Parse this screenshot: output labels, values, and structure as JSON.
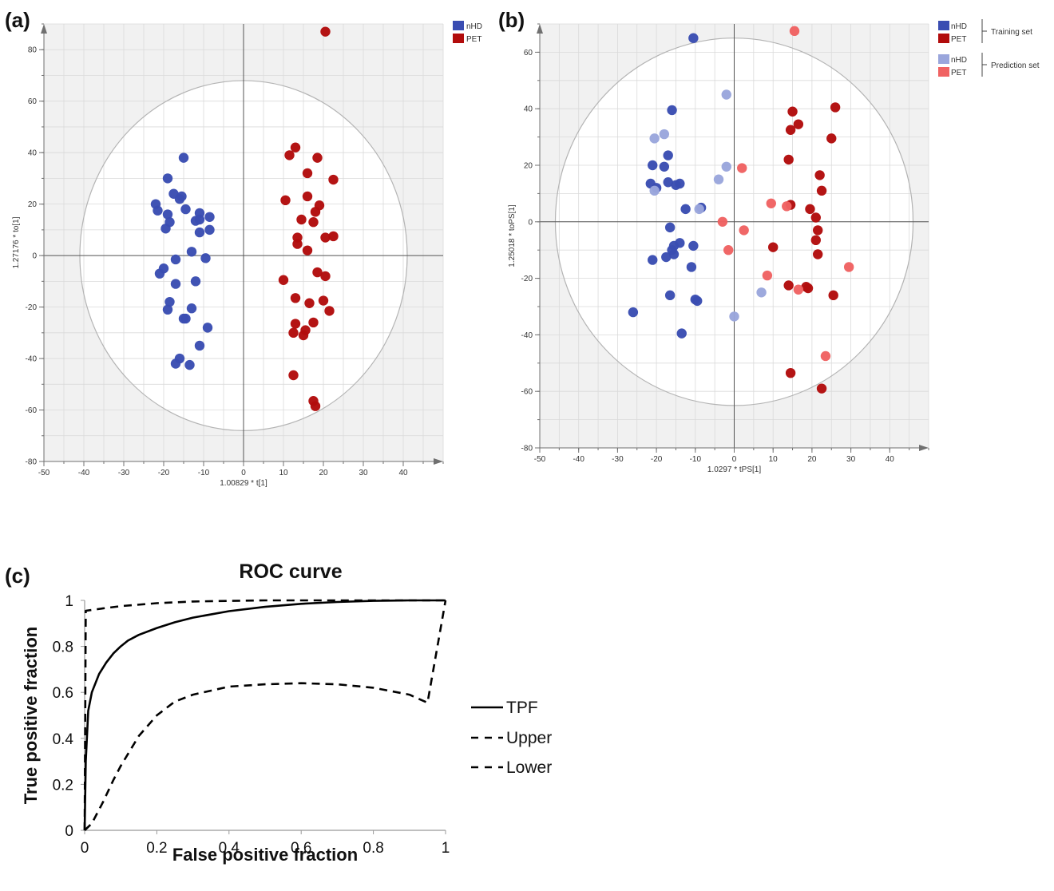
{
  "panel_labels": {
    "a": "(a)",
    "b": "(b)",
    "c": "(c)"
  },
  "colors": {
    "nHD_train": "#3a4db2",
    "PET_train": "#b20c0c",
    "nHD_pred": "#9aa6dc",
    "PET_pred": "#f06262",
    "plot_bg": "#f1f1f1",
    "grid": "#dadada",
    "axis": "#707070"
  },
  "chart_data": [
    {
      "id": "a",
      "type": "scatter",
      "title": "",
      "xlabel": "1.00829 * t[1]",
      "ylabel": "1.27176 * to[1]",
      "xlim": [
        -50,
        50
      ],
      "ylim": [
        -80,
        90
      ],
      "xticks": [
        -50,
        -40,
        -30,
        -20,
        -10,
        0,
        10,
        20,
        30,
        40
      ],
      "yticks": [
        -80,
        -60,
        -40,
        -20,
        0,
        20,
        40,
        60,
        80
      ],
      "ellipse": {
        "rx": 41,
        "ry": 68
      },
      "grid": true,
      "legend": [
        {
          "label": "nHD",
          "color": "#3a4db2"
        },
        {
          "label": "PET",
          "color": "#b20c0c"
        }
      ],
      "series": [
        {
          "name": "nHD",
          "color": "#3a4db2",
          "points": [
            [
              -15,
              38
            ],
            [
              -19,
              30
            ],
            [
              -22,
              20
            ],
            [
              -21.5,
              17.5
            ],
            [
              -17.5,
              24
            ],
            [
              -16,
              22
            ],
            [
              -15.5,
              23
            ],
            [
              -19,
              16
            ],
            [
              -18.5,
              13
            ],
            [
              -19.5,
              10.5
            ],
            [
              -14.5,
              18
            ],
            [
              -12,
              13.5
            ],
            [
              -11,
              16.5
            ],
            [
              -11,
              14
            ],
            [
              -8.5,
              15
            ],
            [
              -8.5,
              10
            ],
            [
              -11,
              9
            ],
            [
              -13,
              1.5
            ],
            [
              -9.5,
              -1
            ],
            [
              -17,
              -1.5
            ],
            [
              -20,
              -5
            ],
            [
              -21,
              -7
            ],
            [
              -17,
              -11
            ],
            [
              -12,
              -10
            ],
            [
              -18.5,
              -18
            ],
            [
              -19,
              -21
            ],
            [
              -13,
              -20.5
            ],
            [
              -15,
              -24.5
            ],
            [
              -14.5,
              -24.5
            ],
            [
              -9,
              -28
            ],
            [
              -11,
              -35
            ],
            [
              -16,
              -40
            ],
            [
              -17,
              -42
            ],
            [
              -13.5,
              -42.5
            ]
          ]
        },
        {
          "name": "PET",
          "color": "#b20c0c",
          "points": [
            [
              20.5,
              87
            ],
            [
              11.5,
              39
            ],
            [
              13,
              42
            ],
            [
              18.5,
              38
            ],
            [
              16,
              32
            ],
            [
              22.5,
              29.5
            ],
            [
              10.5,
              21.5
            ],
            [
              16,
              23
            ],
            [
              19,
              19.5
            ],
            [
              18,
              17
            ],
            [
              14.5,
              14
            ],
            [
              17.5,
              13
            ],
            [
              20.5,
              7
            ],
            [
              22.5,
              7.5
            ],
            [
              13.5,
              7
            ],
            [
              13.5,
              4.5
            ],
            [
              16,
              2
            ],
            [
              10,
              -9.5
            ],
            [
              18.5,
              -6.5
            ],
            [
              20.5,
              -8
            ],
            [
              13,
              -16.5
            ],
            [
              16.5,
              -18.5
            ],
            [
              20,
              -17.5
            ],
            [
              21.5,
              -21.5
            ],
            [
              13,
              -26.5
            ],
            [
              17.5,
              -26
            ],
            [
              15.5,
              -29
            ],
            [
              12.5,
              -30
            ],
            [
              15,
              -31
            ],
            [
              12.5,
              -46.5
            ],
            [
              17.5,
              -56.5
            ],
            [
              18,
              -58.5
            ]
          ]
        }
      ]
    },
    {
      "id": "b",
      "type": "scatter",
      "title": "",
      "xlabel": "1.0297 * tPS[1]",
      "ylabel": "1.25018 * toPS[1]",
      "xlim": [
        -50,
        50
      ],
      "ylim": [
        -80,
        70
      ],
      "xticks": [
        -50,
        -40,
        -30,
        -20,
        -10,
        0,
        10,
        20,
        30,
        40
      ],
      "yticks": [
        -80,
        -60,
        -40,
        -20,
        0,
        20,
        40,
        60
      ],
      "ellipse": {
        "rx": 46,
        "ry": 65
      },
      "grid": true,
      "legend_groups": [
        {
          "label": "Training set",
          "items": [
            {
              "label": "nHD",
              "color": "#3a4db2"
            },
            {
              "label": "PET",
              "color": "#b20c0c"
            }
          ]
        },
        {
          "label": "Prediction set",
          "items": [
            {
              "label": "nHD",
              "color": "#9aa6dc"
            },
            {
              "label": "PET",
              "color": "#f06262"
            }
          ]
        }
      ],
      "series": [
        {
          "name": "nHD",
          "color": "#3a4db2",
          "points": [
            [
              -10.5,
              65
            ],
            [
              -16,
              39.5
            ],
            [
              -17,
              23.5
            ],
            [
              -21,
              20
            ],
            [
              -18,
              19.5
            ],
            [
              -21.5,
              13.5
            ],
            [
              -20,
              12
            ],
            [
              -17,
              14
            ],
            [
              -15,
              13
            ],
            [
              -14,
              13.5
            ],
            [
              -12.5,
              4.5
            ],
            [
              -8.5,
              5
            ],
            [
              -16.5,
              -2
            ],
            [
              -15.5,
              -8.5
            ],
            [
              -16,
              -10
            ],
            [
              -15.5,
              -11.5
            ],
            [
              -14,
              -7.5
            ],
            [
              -10.5,
              -8.5
            ],
            [
              -17.5,
              -12.5
            ],
            [
              -21,
              -13.5
            ],
            [
              -11,
              -16
            ],
            [
              -16.5,
              -26
            ],
            [
              -9.5,
              -28
            ],
            [
              -10,
              -27.5
            ],
            [
              -26,
              -32
            ],
            [
              -13.5,
              -39.5
            ]
          ]
        },
        {
          "name": "PET",
          "color": "#b20c0c",
          "points": [
            [
              26,
              40.5
            ],
            [
              15,
              39
            ],
            [
              16.5,
              34.5
            ],
            [
              14.5,
              32.5
            ],
            [
              25,
              29.5
            ],
            [
              14,
              22
            ],
            [
              22,
              16.5
            ],
            [
              22.5,
              11
            ],
            [
              14.5,
              6
            ],
            [
              19.5,
              4.5
            ],
            [
              21,
              1.5
            ],
            [
              21.5,
              -3
            ],
            [
              21,
              -6.5
            ],
            [
              10,
              -9
            ],
            [
              21.5,
              -11.5
            ],
            [
              14,
              -22.5
            ],
            [
              18.5,
              -23
            ],
            [
              19,
              -23.5
            ],
            [
              25.5,
              -26
            ],
            [
              14.5,
              -53.5
            ],
            [
              22.5,
              -59
            ]
          ]
        },
        {
          "name": "nHD",
          "color": "#9aa6dc",
          "points": [
            [
              -2,
              45
            ],
            [
              -18,
              31
            ],
            [
              -20.5,
              29.5
            ],
            [
              -2,
              19.5
            ],
            [
              -4,
              15
            ],
            [
              -20.5,
              11
            ],
            [
              -9,
              4.5
            ],
            [
              7,
              -25
            ],
            [
              0,
              -33.5
            ]
          ]
        },
        {
          "name": "PET",
          "color": "#f06262",
          "points": [
            [
              15.5,
              67.5
            ],
            [
              2,
              19
            ],
            [
              9.5,
              6.5
            ],
            [
              13.5,
              5.5
            ],
            [
              -3,
              0
            ],
            [
              2.5,
              -3
            ],
            [
              -1.5,
              -10
            ],
            [
              8.5,
              -19
            ],
            [
              16.5,
              -24
            ],
            [
              29.5,
              -16
            ],
            [
              23.5,
              -47.5
            ]
          ]
        }
      ]
    },
    {
      "id": "c",
      "type": "line",
      "title": "ROC curve",
      "xlabel": "False positive fraction",
      "ylabel": "True positive fraction",
      "xlim": [
        0,
        1
      ],
      "ylim": [
        0,
        1
      ],
      "xticks": [
        0,
        0.2,
        0.4,
        0.6,
        0.8,
        1
      ],
      "xtick_labels": [
        "0",
        "0.2",
        "0.4",
        "0.6",
        "0.8",
        "1"
      ],
      "yticks": [
        0,
        0.2,
        0.4,
        0.6,
        0.8,
        1
      ],
      "ytick_labels": [
        "0",
        "0.2",
        "0.4",
        "0.6",
        "0.8",
        "1"
      ],
      "legend": [
        "TPF",
        "Upper",
        "Lower"
      ],
      "legend_position": "right",
      "series": [
        {
          "name": "TPF",
          "dash": "solid",
          "x": [
            0,
            0.003,
            0.01,
            0.02,
            0.04,
            0.06,
            0.08,
            0.1,
            0.12,
            0.15,
            0.2,
            0.25,
            0.3,
            0.4,
            0.5,
            0.6,
            0.7,
            0.8,
            0.9,
            1
          ],
          "y": [
            0,
            0.3,
            0.52,
            0.6,
            0.68,
            0.73,
            0.77,
            0.8,
            0.825,
            0.85,
            0.88,
            0.905,
            0.925,
            0.953,
            0.972,
            0.985,
            0.993,
            0.998,
            1,
            1
          ]
        },
        {
          "name": "Upper",
          "dash": "dashed",
          "x": [
            0,
            0.003,
            0.05,
            0.1,
            0.2,
            0.3,
            0.4,
            0.5,
            0.6,
            0.7,
            0.8,
            0.9,
            1
          ],
          "y": [
            0,
            0.955,
            0.965,
            0.975,
            0.988,
            0.995,
            0.998,
            1,
            1,
            1,
            1,
            1,
            1
          ]
        },
        {
          "name": "Lower",
          "dash": "dashed",
          "x": [
            0,
            0.02,
            0.05,
            0.08,
            0.1,
            0.15,
            0.2,
            0.25,
            0.3,
            0.4,
            0.5,
            0.6,
            0.7,
            0.8,
            0.9,
            0.95,
            1
          ],
          "y": [
            0,
            0.03,
            0.12,
            0.22,
            0.28,
            0.41,
            0.5,
            0.56,
            0.59,
            0.625,
            0.635,
            0.64,
            0.635,
            0.62,
            0.59,
            0.555,
            1
          ]
        }
      ]
    }
  ]
}
